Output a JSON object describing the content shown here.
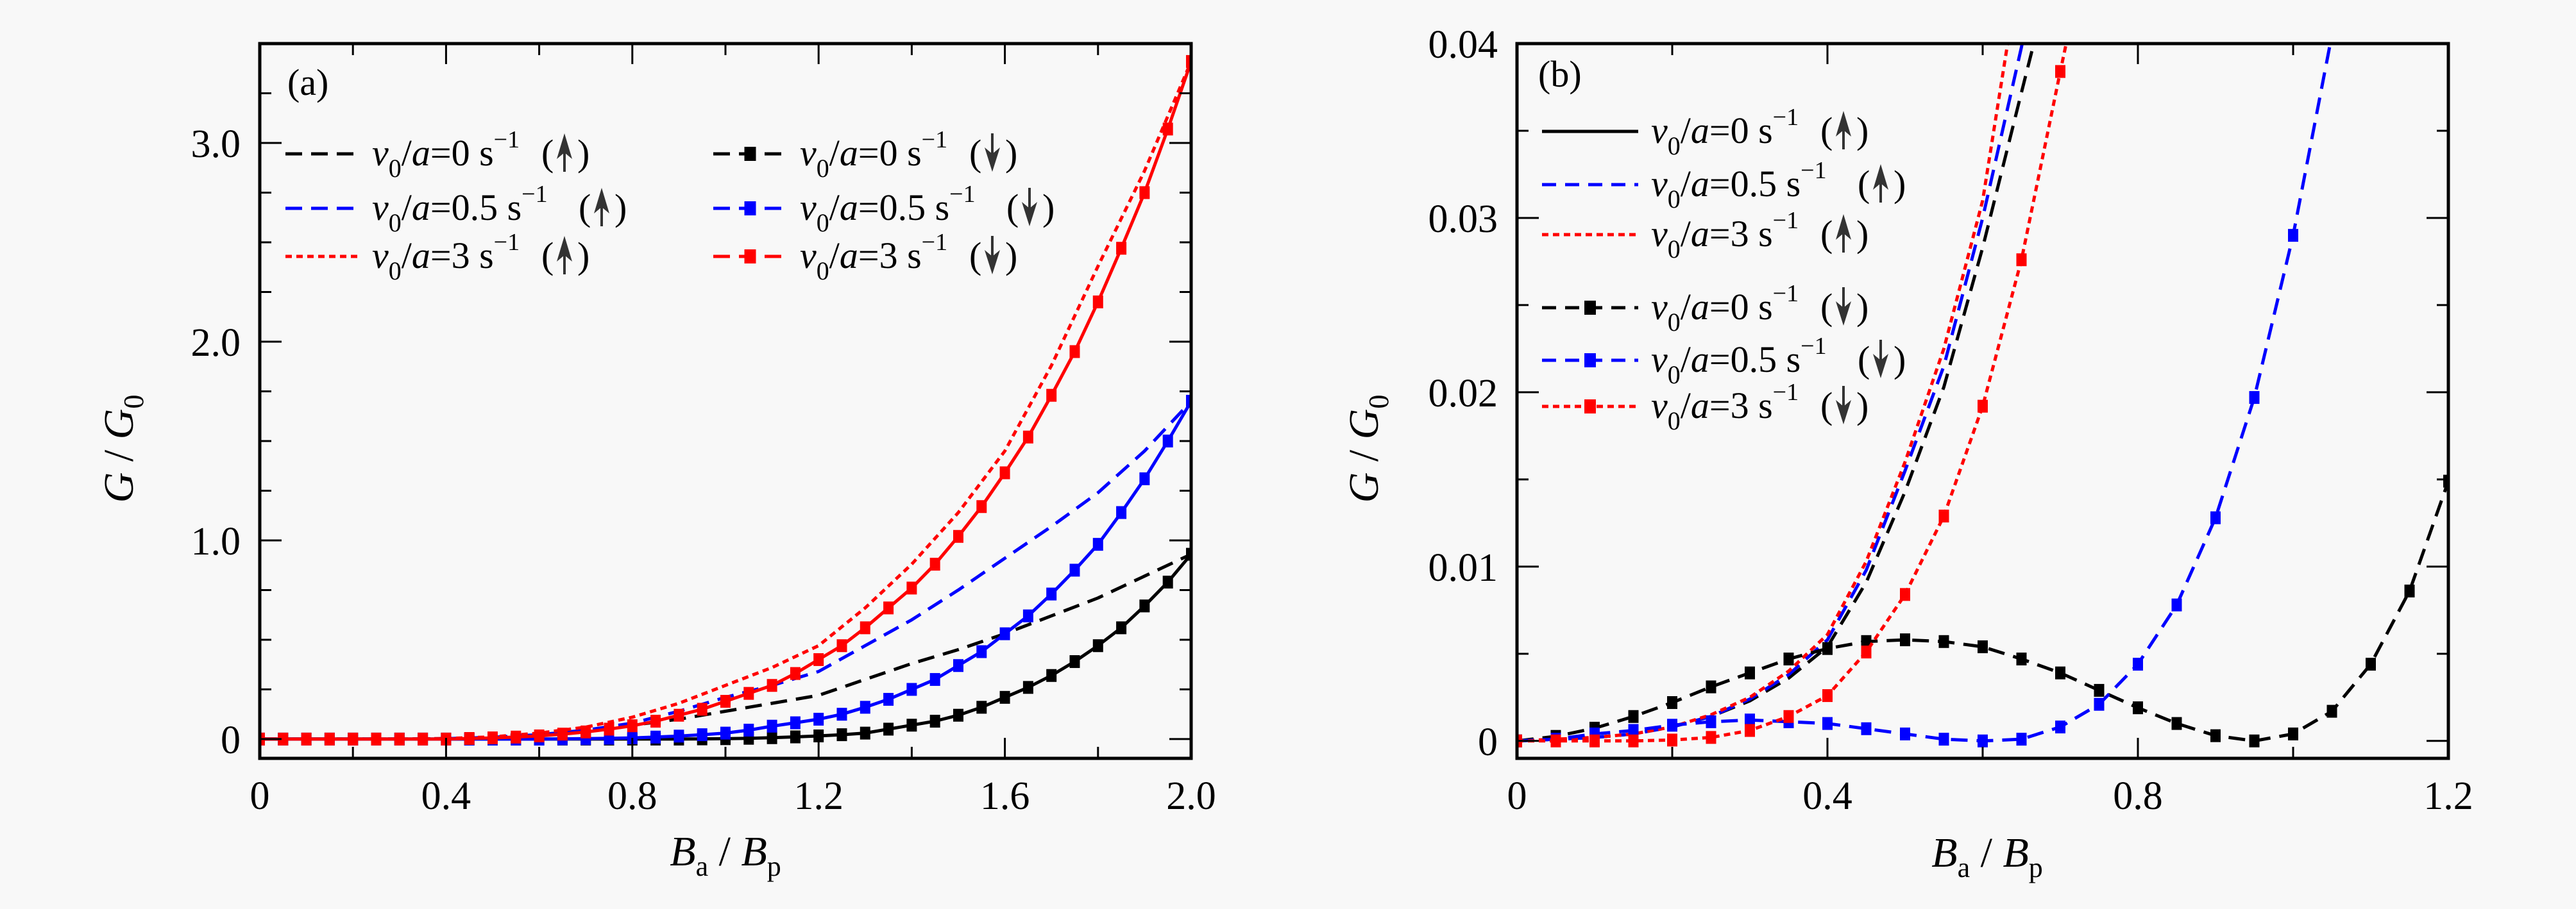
{
  "figure": {
    "background": "#f8f8f8",
    "colors": {
      "black": "#000000",
      "blue": "#0000ff",
      "red": "#ff0000",
      "arrow": "#333333"
    }
  },
  "chart_data": [
    {
      "type": "line",
      "panel_label": "(a)",
      "title": "",
      "xlabel": {
        "main": "B",
        "sub": "a",
        "sep": " / ",
        "main2": "B",
        "sub2": "p"
      },
      "ylabel": {
        "main": "G",
        "sep": " / ",
        "main2": "G",
        "sub2": "0"
      },
      "xlim": [
        0,
        2.0
      ],
      "ylim": [
        -0.097,
        3.5
      ],
      "xticks": [
        0,
        0.4,
        0.8,
        1.2,
        1.6,
        2.0
      ],
      "xtick_labels": [
        "0",
        "0.4",
        "0.8",
        "1.2",
        "1.6",
        "2.0"
      ],
      "xminor": [
        0.2,
        0.6,
        1.0,
        1.4,
        1.8
      ],
      "yticks": [
        0,
        1.0,
        2.0,
        3.0
      ],
      "ytick_labels": [
        "0",
        "1.0",
        "2.0",
        "3.0"
      ],
      "yminor": [
        0.25,
        0.5,
        0.75,
        1.25,
        1.5,
        1.75,
        2.25,
        2.5,
        2.75,
        3.25
      ],
      "grid": false,
      "legend": {
        "placement": "top-left",
        "columns": 2,
        "entries": [
          {
            "series": 0,
            "prefix": "v",
            "sub": "0",
            "mid": "/a=0 s",
            "sup": "−1",
            "dir": "up"
          },
          {
            "series": 3,
            "prefix": "v",
            "sub": "0",
            "mid": "/a=0 s",
            "sup": "−1",
            "dir": "down"
          },
          {
            "series": 1,
            "prefix": "v",
            "sub": "0",
            "mid": "/a=0.5 s",
            "sup": "−1",
            "dir": "up"
          },
          {
            "series": 4,
            "prefix": "v",
            "sub": "0",
            "mid": "/a=0.5 s",
            "sup": "−1",
            "dir": "down"
          },
          {
            "series": 2,
            "prefix": "v",
            "sub": "0",
            "mid": "/a=3 s",
            "sup": "−1",
            "dir": "up"
          },
          {
            "series": 5,
            "prefix": "v",
            "sub": "0",
            "mid": "/a=3 s",
            "sup": "−1",
            "dir": "down"
          }
        ]
      },
      "series": [
        {
          "name": "v0/a=0 s−1 (↑)",
          "color": "black",
          "style": "dashed",
          "markers": false,
          "x": [
            0,
            0.1,
            0.2,
            0.3,
            0.4,
            0.5,
            0.6,
            0.7,
            0.8,
            0.9,
            1.0,
            1.1,
            1.2,
            1.3,
            1.4,
            1.5,
            1.6,
            1.7,
            1.8,
            1.9,
            2.0
          ],
          "y": [
            0,
            0,
            0,
            0,
            0.002,
            0.008,
            0.02,
            0.042,
            0.07,
            0.1,
            0.14,
            0.18,
            0.22,
            0.3,
            0.38,
            0.45,
            0.53,
            0.62,
            0.71,
            0.82,
            0.93
          ]
        },
        {
          "name": "v0/a=0.5 s−1 (↑)",
          "color": "blue",
          "style": "dashed",
          "markers": false,
          "x": [
            0,
            0.1,
            0.2,
            0.3,
            0.4,
            0.5,
            0.6,
            0.7,
            0.8,
            0.9,
            1.0,
            1.1,
            1.2,
            1.3,
            1.4,
            1.5,
            1.6,
            1.7,
            1.8,
            1.9,
            2.0
          ],
          "y": [
            0,
            0,
            0,
            0,
            0.002,
            0.009,
            0.022,
            0.045,
            0.08,
            0.14,
            0.21,
            0.27,
            0.34,
            0.47,
            0.6,
            0.75,
            0.91,
            1.07,
            1.24,
            1.45,
            1.7
          ]
        },
        {
          "name": "v0/a=3 s−1 (↑)",
          "color": "red",
          "style": "dotted",
          "markers": false,
          "x": [
            0,
            0.1,
            0.2,
            0.3,
            0.4,
            0.5,
            0.6,
            0.7,
            0.8,
            0.9,
            1.0,
            1.1,
            1.2,
            1.3,
            1.4,
            1.5,
            1.6,
            1.7,
            1.8,
            1.9,
            2.0
          ],
          "y": [
            0,
            0,
            0,
            0,
            0.003,
            0.011,
            0.03,
            0.06,
            0.11,
            0.18,
            0.27,
            0.36,
            0.47,
            0.66,
            0.88,
            1.14,
            1.45,
            1.88,
            2.38,
            2.86,
            3.41
          ]
        },
        {
          "name": "v0/a=0 s−1 (↓)",
          "color": "black",
          "style": "solid",
          "markers": true,
          "x": [
            0,
            0.05,
            0.1,
            0.15,
            0.2,
            0.25,
            0.3,
            0.35,
            0.4,
            0.45,
            0.5,
            0.55,
            0.6,
            0.65,
            0.7,
            0.75,
            0.8,
            0.85,
            0.9,
            0.95,
            1.0,
            1.05,
            1.1,
            1.15,
            1.2,
            1.25,
            1.3,
            1.35,
            1.4,
            1.45,
            1.5,
            1.55,
            1.6,
            1.65,
            1.7,
            1.75,
            1.8,
            1.85,
            1.9,
            1.95,
            2.0
          ],
          "y": [
            0,
            0,
            0,
            0,
            0,
            0,
            0,
            0,
            0,
            0,
            0,
            0,
            0,
            0,
            0,
            0,
            0,
            0,
            0,
            0.001,
            0.002,
            0.004,
            0.007,
            0.011,
            0.016,
            0.022,
            0.03,
            0.05,
            0.07,
            0.09,
            0.12,
            0.16,
            0.21,
            0.26,
            0.32,
            0.39,
            0.47,
            0.56,
            0.67,
            0.79,
            0.93
          ]
        },
        {
          "name": "v0/a=0.5 s−1 (↓)",
          "color": "blue",
          "style": "solid",
          "markers": true,
          "x": [
            0,
            0.05,
            0.1,
            0.15,
            0.2,
            0.25,
            0.3,
            0.35,
            0.4,
            0.45,
            0.5,
            0.55,
            0.6,
            0.65,
            0.7,
            0.75,
            0.8,
            0.85,
            0.9,
            0.95,
            1.0,
            1.05,
            1.1,
            1.15,
            1.2,
            1.25,
            1.3,
            1.35,
            1.4,
            1.45,
            1.5,
            1.55,
            1.6,
            1.65,
            1.7,
            1.75,
            1.8,
            1.85,
            1.9,
            1.95,
            2.0
          ],
          "y": [
            0,
            0,
            0,
            0,
            0,
            0,
            0,
            0,
            0,
            0,
            0,
            0,
            0,
            0.001,
            0.002,
            0.004,
            0.006,
            0.01,
            0.015,
            0.022,
            0.03,
            0.045,
            0.065,
            0.082,
            0.1,
            0.125,
            0.16,
            0.2,
            0.25,
            0.3,
            0.37,
            0.44,
            0.53,
            0.62,
            0.73,
            0.85,
            0.98,
            1.14,
            1.31,
            1.5,
            1.7
          ]
        },
        {
          "name": "v0/a=3 s−1 (↓)",
          "color": "red",
          "style": "solid",
          "markers": true,
          "x": [
            0,
            0.05,
            0.1,
            0.15,
            0.2,
            0.25,
            0.3,
            0.35,
            0.4,
            0.45,
            0.5,
            0.55,
            0.6,
            0.65,
            0.7,
            0.75,
            0.8,
            0.85,
            0.9,
            0.95,
            1.0,
            1.05,
            1.1,
            1.15,
            1.2,
            1.25,
            1.3,
            1.35,
            1.4,
            1.45,
            1.5,
            1.55,
            1.6,
            1.65,
            1.7,
            1.75,
            1.8,
            1.85,
            1.9,
            1.95,
            2.0
          ],
          "y": [
            0,
            0,
            0,
            0,
            0,
            0,
            0,
            0,
            0,
            0.003,
            0.006,
            0.01,
            0.016,
            0.025,
            0.036,
            0.05,
            0.067,
            0.09,
            0.12,
            0.15,
            0.19,
            0.23,
            0.27,
            0.33,
            0.4,
            0.47,
            0.56,
            0.66,
            0.76,
            0.88,
            1.02,
            1.17,
            1.34,
            1.52,
            1.73,
            1.95,
            2.2,
            2.47,
            2.75,
            3.07,
            3.41
          ]
        }
      ]
    },
    {
      "type": "line",
      "panel_label": "(b)",
      "title": "",
      "xlabel": {
        "main": "B",
        "sub": "a",
        "sep": " / ",
        "main2": "B",
        "sub2": "p"
      },
      "ylabel": {
        "main": "G",
        "sep": " / ",
        "main2": "G",
        "sub2": "0"
      },
      "xlim": [
        0,
        1.2
      ],
      "ylim": [
        -0.001,
        0.04
      ],
      "xticks": [
        0,
        0.4,
        0.8,
        1.2
      ],
      "xtick_labels": [
        "0",
        "0.4",
        "0.8",
        "1.2"
      ],
      "xminor": [
        0.2,
        0.6,
        1.0
      ],
      "yticks": [
        0,
        0.01,
        0.02,
        0.03,
        0.04
      ],
      "ytick_labels": [
        "0",
        "0.01",
        "0.02",
        "0.03",
        "0.04"
      ],
      "yminor": [
        0.005,
        0.015,
        0.025,
        0.035
      ],
      "grid": false,
      "legend": {
        "placement": "top-left",
        "columns": 1,
        "entries": [
          {
            "series": 0,
            "prefix": "v",
            "sub": "0",
            "mid": "/a=0 s",
            "sup": "−1",
            "dir": "up",
            "sample": "solid"
          },
          {
            "series": 1,
            "prefix": "v",
            "sub": "0",
            "mid": "/a=0.5 s",
            "sup": "−1",
            "dir": "up"
          },
          {
            "series": 2,
            "prefix": "v",
            "sub": "0",
            "mid": "/a=3 s",
            "sup": "−1",
            "dir": "up"
          },
          {
            "series": 3,
            "prefix": "v",
            "sub": "0",
            "mid": "/a=0 s",
            "sup": "−1",
            "dir": "down"
          },
          {
            "series": 4,
            "prefix": "v",
            "sub": "0",
            "mid": "/a=0.5 s",
            "sup": "−1",
            "dir": "down"
          },
          {
            "series": 5,
            "prefix": "v",
            "sub": "0",
            "mid": "/a=3 s",
            "sup": "−1",
            "dir": "down"
          }
        ]
      },
      "series": [
        {
          "name": "v0/a=0 s−1 (↑)",
          "color": "black",
          "style": "dashed",
          "markers": false,
          "x": [
            0,
            0.05,
            0.1,
            0.15,
            0.2,
            0.25,
            0.3,
            0.35,
            0.4,
            0.45,
            0.5,
            0.55,
            0.6,
            0.65,
            0.68
          ],
          "y": [
            0,
            0.0001,
            0.0002,
            0.0004,
            0.0008,
            0.0014,
            0.0023,
            0.0036,
            0.0054,
            0.0091,
            0.0143,
            0.0203,
            0.0283,
            0.0372,
            0.0425
          ]
        },
        {
          "name": "v0/a=0.5 s−1 (↑)",
          "color": "blue",
          "style": "dashed",
          "markers": false,
          "x": [
            0,
            0.05,
            0.1,
            0.15,
            0.2,
            0.25,
            0.3,
            0.35,
            0.4,
            0.45,
            0.5,
            0.55,
            0.6,
            0.65,
            0.66
          ],
          "y": [
            0,
            0.0001,
            0.0002,
            0.0004,
            0.0008,
            0.0014,
            0.0024,
            0.0038,
            0.0058,
            0.0098,
            0.0155,
            0.0215,
            0.03,
            0.0398,
            0.042
          ]
        },
        {
          "name": "v0/a=3 s−1 (↑)",
          "color": "red",
          "style": "dotted",
          "markers": false,
          "x": [
            0,
            0.05,
            0.1,
            0.15,
            0.2,
            0.25,
            0.3,
            0.35,
            0.4,
            0.45,
            0.5,
            0.55,
            0.6,
            0.64
          ],
          "y": [
            0,
            0.0001,
            0.0002,
            0.0004,
            0.0008,
            0.0015,
            0.0025,
            0.004,
            0.0061,
            0.0103,
            0.016,
            0.0225,
            0.031,
            0.0422
          ]
        },
        {
          "name": "v0/a=0 s−1 (↓)",
          "color": "black",
          "style": "dashed",
          "markers": true,
          "x": [
            0,
            0.05,
            0.1,
            0.15,
            0.2,
            0.25,
            0.3,
            0.35,
            0.4,
            0.45,
            0.5,
            0.55,
            0.6,
            0.65,
            0.7,
            0.75,
            0.8,
            0.85,
            0.9,
            0.95,
            1.0,
            1.05,
            1.1,
            1.15,
            1.2
          ],
          "y": [
            0,
            0.00026,
            0.00073,
            0.0014,
            0.0022,
            0.0031,
            0.0039,
            0.0047,
            0.0053,
            0.0057,
            0.0058,
            0.0057,
            0.0054,
            0.0047,
            0.0039,
            0.0029,
            0.0019,
            0.001,
            0.0003,
            0,
            0.0004,
            0.0017,
            0.0044,
            0.0086,
            0.0149
          ]
        },
        {
          "name": "v0/a=0.5 s−1 (↓)",
          "color": "blue",
          "style": "dashed",
          "markers": true,
          "x": [
            0,
            0.05,
            0.1,
            0.15,
            0.2,
            0.25,
            0.3,
            0.35,
            0.4,
            0.45,
            0.5,
            0.55,
            0.6,
            0.65,
            0.7,
            0.75,
            0.8,
            0.85,
            0.9,
            0.95,
            1.0,
            1.05
          ],
          "y": [
            0,
            0.0001,
            0.0004,
            0.0006,
            0.0009,
            0.0011,
            0.0012,
            0.0011,
            0.001,
            0.0007,
            0.0004,
            0.0001,
            0,
            0.0001,
            0.0008,
            0.0021,
            0.0044,
            0.0078,
            0.0128,
            0.0197,
            0.029,
            0.0405
          ]
        },
        {
          "name": "v0/a=3 s−1 (↓)",
          "color": "red",
          "style": "dotted",
          "markers": true,
          "x": [
            0,
            0.05,
            0.1,
            0.15,
            0.2,
            0.25,
            0.3,
            0.35,
            0.4,
            0.45,
            0.5,
            0.55,
            0.6,
            0.65,
            0.7,
            0.71
          ],
          "y": [
            0,
            0,
            0,
            0,
            5e-05,
            0.0002,
            0.0006,
            0.0014,
            0.0026,
            0.0051,
            0.0084,
            0.0129,
            0.0192,
            0.0276,
            0.0384,
            0.0405
          ]
        }
      ]
    }
  ]
}
